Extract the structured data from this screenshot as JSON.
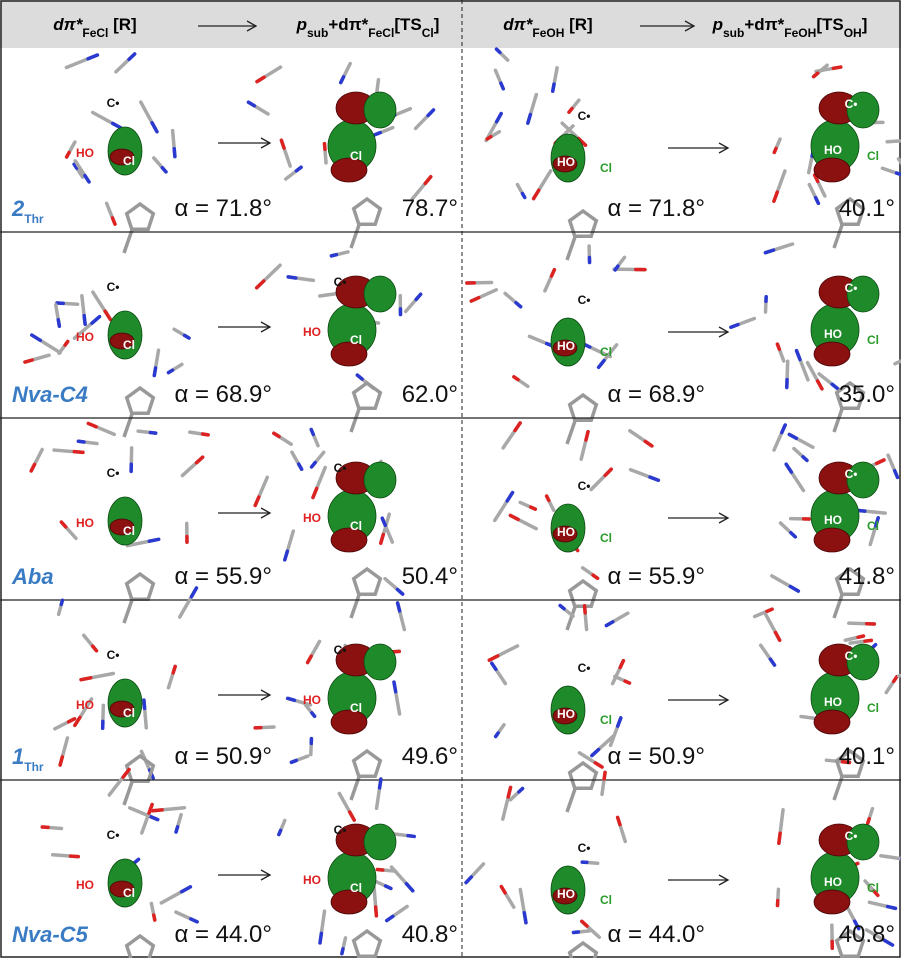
{
  "header": {
    "columns": [
      [
        {
          "text": "dπ*"
        },
        {
          "sub": "FeCl"
        },
        {
          "text": " [R]"
        }
      ],
      [
        {
          "text": "p"
        },
        {
          "sub": "sub"
        },
        {
          "text": "+dπ*"
        },
        {
          "sub": "FeCl"
        },
        {
          "text": "[TS"
        },
        {
          "sub": "Cl"
        },
        {
          "text": "]"
        }
      ],
      [
        {
          "text": "dπ*"
        },
        {
          "sub": "FeOH"
        },
        {
          "text": " [R]"
        }
      ],
      [
        {
          "text": "p"
        },
        {
          "sub": "sub"
        },
        {
          "text": "+dπ*"
        },
        {
          "sub": "FeOH"
        },
        {
          "text": "[TS"
        },
        {
          "sub": "OH"
        },
        {
          "text": "]"
        }
      ]
    ]
  },
  "rows": [
    {
      "label": [
        {
          "text": "2"
        },
        {
          "sub": "Thr"
        }
      ],
      "panels": [
        {
          "atoms": [
            "C•",
            "HO",
            "Cl"
          ],
          "angle": "α = 71.8°"
        },
        {
          "atoms": [
            "Cl"
          ],
          "angle": "78.7°"
        },
        {
          "atoms": [
            "C•",
            "HO",
            "Cl"
          ],
          "angle": "α = 71.8°"
        },
        {
          "atoms": [
            "C•",
            "HO",
            "Cl"
          ],
          "angle": "40.1°"
        }
      ]
    },
    {
      "label": [
        {
          "text": "Nva-C4"
        }
      ],
      "panels": [
        {
          "atoms": [
            "C•",
            "HO",
            "Cl"
          ],
          "angle": "α = 68.9°"
        },
        {
          "atoms": [
            "C•",
            "HO",
            "Cl"
          ],
          "angle": "62.0°"
        },
        {
          "atoms": [
            "C•",
            "HO",
            "Cl"
          ],
          "angle": "α = 68.9°"
        },
        {
          "atoms": [
            "C•",
            "HO",
            "Cl"
          ],
          "angle": "35.0°"
        }
      ]
    },
    {
      "label": [
        {
          "text": "Aba"
        }
      ],
      "panels": [
        {
          "atoms": [
            "C•",
            "HO",
            "Cl"
          ],
          "angle": "α = 55.9°"
        },
        {
          "atoms": [
            "C•",
            "HO",
            "Cl"
          ],
          "angle": "50.4°"
        },
        {
          "atoms": [
            "C•",
            "HO",
            "Cl"
          ],
          "angle": "α = 55.9°"
        },
        {
          "atoms": [
            "C•",
            "HO",
            "Cl"
          ],
          "angle": "41.8°"
        }
      ]
    },
    {
      "label": [
        {
          "text": "1"
        },
        {
          "sub": "Thr"
        }
      ],
      "panels": [
        {
          "atoms": [
            "C•",
            "HO",
            "Cl"
          ],
          "angle": "α = 50.9°"
        },
        {
          "atoms": [
            "C•",
            "HO",
            "Cl"
          ],
          "angle": "49.6°"
        },
        {
          "atoms": [
            "C•",
            "HO",
            "Cl"
          ],
          "angle": "α = 50.9°"
        },
        {
          "atoms": [
            "C•",
            "HO",
            "Cl"
          ],
          "angle": "40.1°"
        }
      ]
    },
    {
      "label": [
        {
          "text": "Nva-C5"
        }
      ],
      "panels": [
        {
          "atoms": [
            "C•",
            "HO",
            "Cl"
          ],
          "angle": "α = 44.0°"
        },
        {
          "atoms": [
            "C•",
            "HO",
            "Cl"
          ],
          "angle": "40.8°"
        },
        {
          "atoms": [
            "C•",
            "HO",
            "Cl"
          ],
          "angle": "α = 44.0°"
        },
        {
          "atoms": [
            "C•",
            "HO",
            "Cl"
          ],
          "angle": "40.8°"
        }
      ]
    }
  ]
}
